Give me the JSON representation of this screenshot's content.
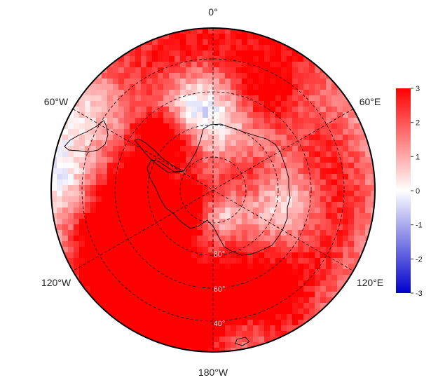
{
  "map": {
    "projection": "south polar stereographic",
    "longitude_labels": {
      "top": "0°",
      "upper_right": "60°E",
      "lower_right": "120°E",
      "bottom": "180°W",
      "lower_left": "120°W",
      "upper_left": "60°W"
    },
    "latitude_labels": [
      "80°",
      "60°",
      "40°"
    ],
    "colorbar": {
      "min": -3,
      "max": 3,
      "ticks": [
        "3",
        "2",
        "1",
        "0",
        "-1",
        "-2",
        "-3"
      ],
      "colors": {
        "high": "#ff0000",
        "mid": "#ffffff",
        "low": "#0000cc"
      }
    },
    "coastline_color": "#000000"
  }
}
